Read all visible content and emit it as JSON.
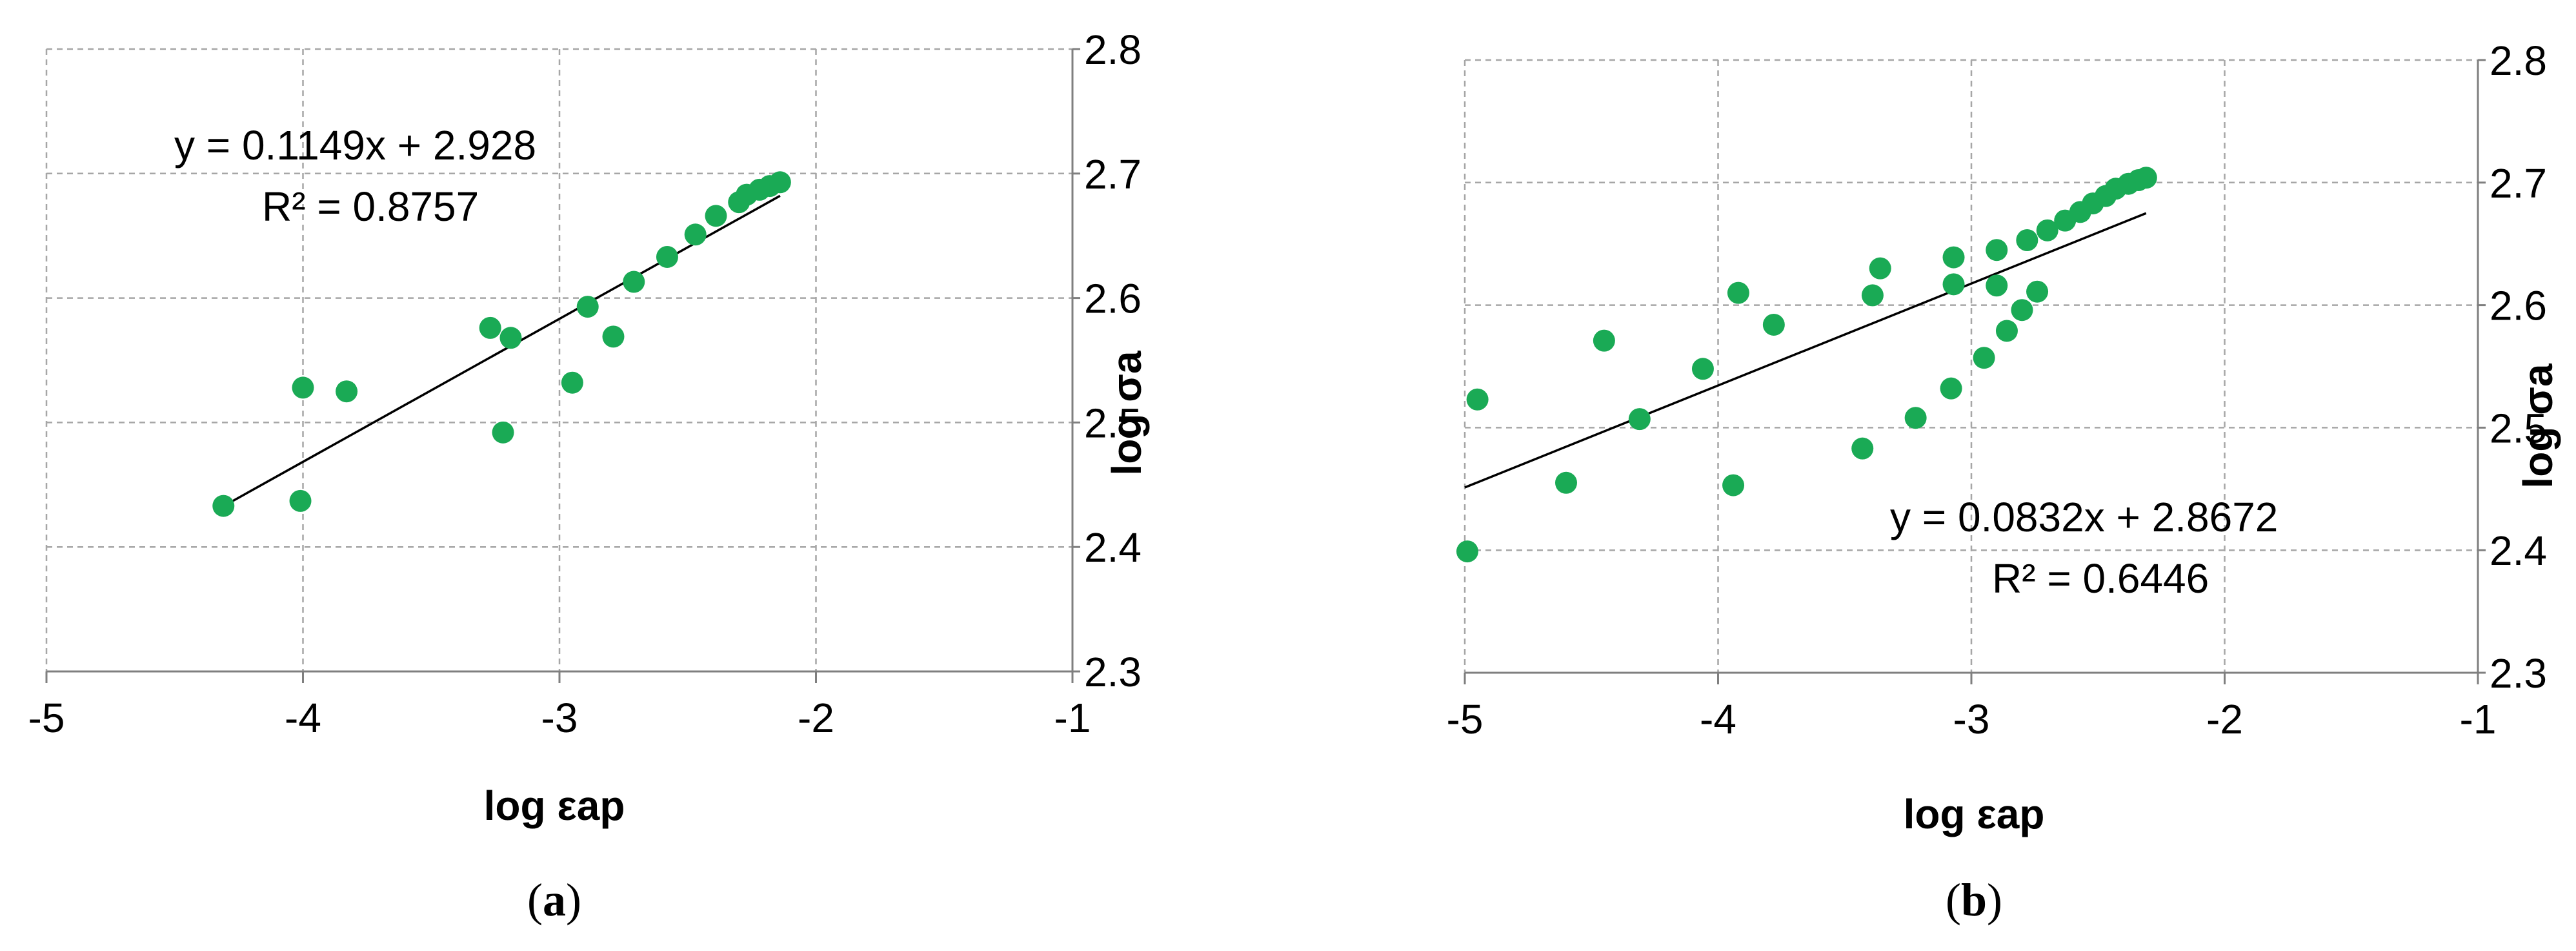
{
  "accent_color": "#1aaa55",
  "chart_data": [
    {
      "type": "scatter",
      "panel_label": "a",
      "xlabel": "log εap",
      "ylabel": "log σa",
      "xlim": [
        -5,
        -1
      ],
      "ylim": [
        2.3,
        2.8
      ],
      "xticks": [
        "-5",
        "-4",
        "-3",
        "-2",
        "-1"
      ],
      "yticks": [
        "2.3",
        "2.4",
        "2.5",
        "2.6",
        "2.7",
        "2.8"
      ],
      "grid": true,
      "series": [
        {
          "marker_color": "#1aaa55",
          "points": [
            [
              -4.31,
              2.433
            ],
            [
              -4.01,
              2.437
            ],
            [
              -4.0,
              2.528
            ],
            [
              -3.83,
              2.525
            ],
            [
              -3.27,
              2.576
            ],
            [
              -3.22,
              2.492
            ],
            [
              -3.19,
              2.568
            ],
            [
              -2.95,
              2.532
            ],
            [
              -2.89,
              2.593
            ],
            [
              -2.79,
              2.569
            ],
            [
              -2.71,
              2.613
            ],
            [
              -2.58,
              2.633
            ],
            [
              -2.47,
              2.651
            ],
            [
              -2.39,
              2.666
            ],
            [
              -2.3,
              2.677
            ],
            [
              -2.27,
              2.683
            ],
            [
              -2.22,
              2.687
            ],
            [
              -2.18,
              2.69
            ],
            [
              -2.14,
              2.693
            ]
          ]
        }
      ],
      "trendline": {
        "slope": 0.1149,
        "intercept": 2.928,
        "x_start": -4.31,
        "x_end": -2.14
      },
      "equation_text": "y = 0.1149x + 2.928",
      "r2_text": "R² = 0.8757"
    },
    {
      "type": "scatter",
      "panel_label": "b",
      "xlabel": "log εap",
      "ylabel": "log σa",
      "xlim": [
        -5,
        -1
      ],
      "ylim": [
        2.3,
        2.8
      ],
      "xticks": [
        "-5",
        "-4",
        "-3",
        "-2",
        "-1"
      ],
      "yticks": [
        "2.3",
        "2.4",
        "2.5",
        "2.6",
        "2.7",
        "2.8"
      ],
      "grid": true,
      "series": [
        {
          "marker_color": "#1aaa55",
          "points": [
            [
              -4.99,
              2.399
            ],
            [
              -4.95,
              2.523
            ],
            [
              -4.6,
              2.455
            ],
            [
              -4.45,
              2.571
            ],
            [
              -4.31,
              2.507
            ],
            [
              -4.06,
              2.548
            ],
            [
              -3.94,
              2.453
            ],
            [
              -3.92,
              2.61
            ],
            [
              -3.78,
              2.584
            ],
            [
              -3.43,
              2.483
            ],
            [
              -3.39,
              2.608
            ],
            [
              -3.36,
              2.63
            ],
            [
              -3.22,
              2.508
            ],
            [
              -3.08,
              2.532
            ],
            [
              -3.07,
              2.617
            ],
            [
              -3.07,
              2.639
            ],
            [
              -2.95,
              2.557
            ],
            [
              -2.9,
              2.616
            ],
            [
              -2.9,
              2.645
            ],
            [
              -2.86,
              2.579
            ],
            [
              -2.8,
              2.596
            ],
            [
              -2.78,
              2.653
            ],
            [
              -2.74,
              2.611
            ],
            [
              -2.7,
              2.661
            ],
            [
              -2.63,
              2.669
            ],
            [
              -2.57,
              2.676
            ],
            [
              -2.52,
              2.683
            ],
            [
              -2.47,
              2.689
            ],
            [
              -2.43,
              2.695
            ],
            [
              -2.38,
              2.699
            ],
            [
              -2.34,
              2.702
            ],
            [
              -2.31,
              2.704
            ]
          ]
        }
      ],
      "trendline": {
        "slope": 0.0832,
        "intercept": 2.8672,
        "x_start": -5.0,
        "x_end": -2.31
      },
      "equation_text": "y = 0.0832x + 2.8672",
      "r2_text": "R² = 0.6446"
    }
  ]
}
